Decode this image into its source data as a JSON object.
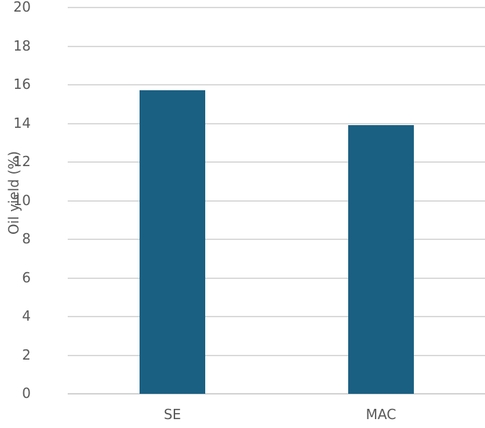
{
  "chart_data": {
    "type": "bar",
    "title": "",
    "xlabel": "",
    "ylabel": "Oil yield (%)",
    "categories": [
      "SE",
      "MAC"
    ],
    "values": [
      15.7,
      13.9
    ],
    "ylim": [
      0,
      20
    ],
    "yticks": [
      0,
      2,
      4,
      6,
      8,
      10,
      12,
      14,
      16,
      18,
      20
    ],
    "grid": true,
    "legend": null,
    "bar_color": "#1a6083"
  }
}
